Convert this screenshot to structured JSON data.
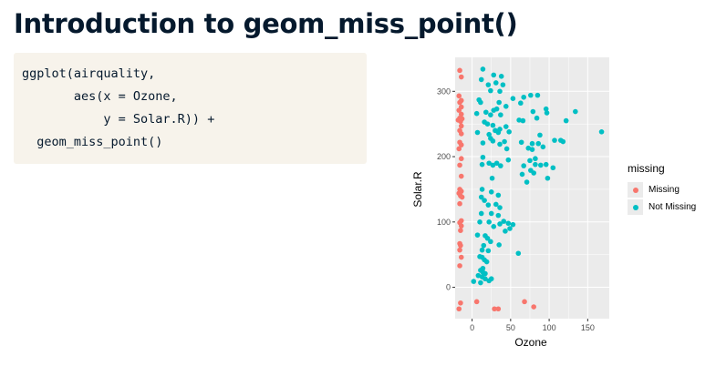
{
  "slide": {
    "title": "Introduction to geom_miss_point()"
  },
  "code": {
    "lines": [
      "ggplot(airquality,",
      "       aes(x = Ozone,",
      "           y = Solar.R)) +",
      "  geom_miss_point()"
    ]
  },
  "chart_data": {
    "type": "scatter",
    "xlabel": "Ozone",
    "ylabel": "Solar.R",
    "xlim": [
      -22,
      178
    ],
    "ylim": [
      -48,
      352
    ],
    "x_ticks": [
      0,
      50,
      100,
      150
    ],
    "y_ticks": [
      0,
      100,
      200,
      300
    ],
    "grid": true,
    "panel_background": "#ebebeb",
    "legend": {
      "title": "missing",
      "position": "right",
      "entries": [
        {
          "label": "Missing",
          "color": "#f8766d"
        },
        {
          "label": "Not Missing",
          "color": "#00bfc4"
        }
      ]
    },
    "series": [
      {
        "name": "Missing",
        "color": "#f8766d",
        "points": [
          [
            -16,
            332
          ],
          [
            -14,
            322
          ],
          [
            -17,
            293
          ],
          [
            -14,
            286
          ],
          [
            -16,
            283
          ],
          [
            -14,
            276
          ],
          [
            -17,
            271
          ],
          [
            -14,
            265
          ],
          [
            -16,
            259
          ],
          [
            -13,
            258
          ],
          [
            -18,
            256
          ],
          [
            -15,
            254
          ],
          [
            -14,
            247
          ],
          [
            -16,
            240
          ],
          [
            -14,
            235
          ],
          [
            -16,
            222
          ],
          [
            -14,
            218
          ],
          [
            -17,
            212
          ],
          [
            -14,
            197
          ],
          [
            -16,
            187
          ],
          [
            -14,
            170
          ],
          [
            -16,
            150
          ],
          [
            -14,
            147
          ],
          [
            -17,
            144
          ],
          [
            -15,
            140
          ],
          [
            -13,
            138
          ],
          [
            -16,
            128
          ],
          [
            -14,
            102
          ],
          [
            -16,
            99
          ],
          [
            -14,
            94
          ],
          [
            -15,
            87
          ],
          [
            -16,
            67
          ],
          [
            -15,
            64
          ],
          [
            -16,
            57
          ],
          [
            -14,
            46
          ],
          [
            -16,
            33
          ],
          [
            -15,
            -24
          ],
          [
            -17,
            -33
          ],
          [
            6,
            -22
          ],
          [
            29,
            -33
          ],
          [
            34,
            -33
          ],
          [
            68,
            -22
          ],
          [
            80,
            -30
          ]
        ]
      },
      {
        "name": "Not Missing",
        "color": "#00bfc4",
        "points": [
          [
            14,
            334
          ],
          [
            28,
            325
          ],
          [
            38,
            323
          ],
          [
            12,
            318
          ],
          [
            31,
            313
          ],
          [
            21,
            310
          ],
          [
            40,
            310
          ],
          [
            24,
            301
          ],
          [
            36,
            300
          ],
          [
            76,
            294
          ],
          [
            67,
            291
          ],
          [
            85,
            294
          ],
          [
            53,
            289
          ],
          [
            9,
            287
          ],
          [
            11,
            283
          ],
          [
            35,
            283
          ],
          [
            63,
            282
          ],
          [
            44,
            277
          ],
          [
            32,
            273
          ],
          [
            28,
            271
          ],
          [
            96,
            273
          ],
          [
            97,
            267
          ],
          [
            134,
            269
          ],
          [
            18,
            268
          ],
          [
            79,
            269
          ],
          [
            6,
            266
          ],
          [
            24,
            264
          ],
          [
            37,
            264
          ],
          [
            61,
            256
          ],
          [
            66,
            255
          ],
          [
            84,
            259
          ],
          [
            122,
            255
          ],
          [
            16,
            253
          ],
          [
            20,
            250
          ],
          [
            27,
            248
          ],
          [
            44,
            246
          ],
          [
            36,
            242
          ],
          [
            30,
            240
          ],
          [
            7,
            237
          ],
          [
            34,
            237
          ],
          [
            48,
            238
          ],
          [
            107,
            225
          ],
          [
            115,
            225
          ],
          [
            168,
            238
          ],
          [
            22,
            234
          ],
          [
            24,
            228
          ],
          [
            27,
            224
          ],
          [
            42,
            223
          ],
          [
            88,
            233
          ],
          [
            14,
            221
          ],
          [
            36,
            219
          ],
          [
            64,
            222
          ],
          [
            78,
            220
          ],
          [
            86,
            220
          ],
          [
            92,
            215
          ],
          [
            118,
            223
          ],
          [
            45,
            212
          ],
          [
            73,
            213
          ],
          [
            78,
            211
          ],
          [
            14,
            199
          ],
          [
            47,
            195
          ],
          [
            82,
            197
          ],
          [
            75,
            194
          ],
          [
            22,
            190
          ],
          [
            32,
            190
          ],
          [
            13,
            188
          ],
          [
            27,
            187
          ],
          [
            37,
            186
          ],
          [
            67,
            186
          ],
          [
            82,
            188
          ],
          [
            89,
            187
          ],
          [
            96,
            188
          ],
          [
            105,
            183
          ],
          [
            76,
            179
          ],
          [
            65,
            173
          ],
          [
            80,
            175
          ],
          [
            98,
            167
          ],
          [
            26,
            167
          ],
          [
            71,
            161
          ],
          [
            13,
            150
          ],
          [
            25,
            146
          ],
          [
            34,
            141
          ],
          [
            12,
            138
          ],
          [
            16,
            133
          ],
          [
            31,
            127
          ],
          [
            21,
            126
          ],
          [
            36,
            122
          ],
          [
            12,
            113
          ],
          [
            25,
            113
          ],
          [
            34,
            110
          ],
          [
            10,
            100
          ],
          [
            22,
            100
          ],
          [
            41,
            101
          ],
          [
            28,
            93
          ],
          [
            36,
            97
          ],
          [
            47,
            98
          ],
          [
            53,
            96
          ],
          [
            49,
            90
          ],
          [
            43,
            86
          ],
          [
            7,
            80
          ],
          [
            17,
            79
          ],
          [
            20,
            75
          ],
          [
            24,
            70
          ],
          [
            35,
            65
          ],
          [
            15,
            64
          ],
          [
            21,
            56
          ],
          [
            13,
            57
          ],
          [
            60,
            52
          ],
          [
            10,
            47
          ],
          [
            13,
            46
          ],
          [
            16,
            42
          ],
          [
            19,
            39
          ],
          [
            14,
            29
          ],
          [
            11,
            26
          ],
          [
            14,
            23
          ],
          [
            17,
            21
          ],
          [
            8,
            18
          ],
          [
            13,
            16
          ],
          [
            17,
            13
          ],
          [
            25,
            13
          ],
          [
            22,
            10
          ],
          [
            2,
            9
          ],
          [
            11,
            7
          ]
        ]
      }
    ]
  }
}
